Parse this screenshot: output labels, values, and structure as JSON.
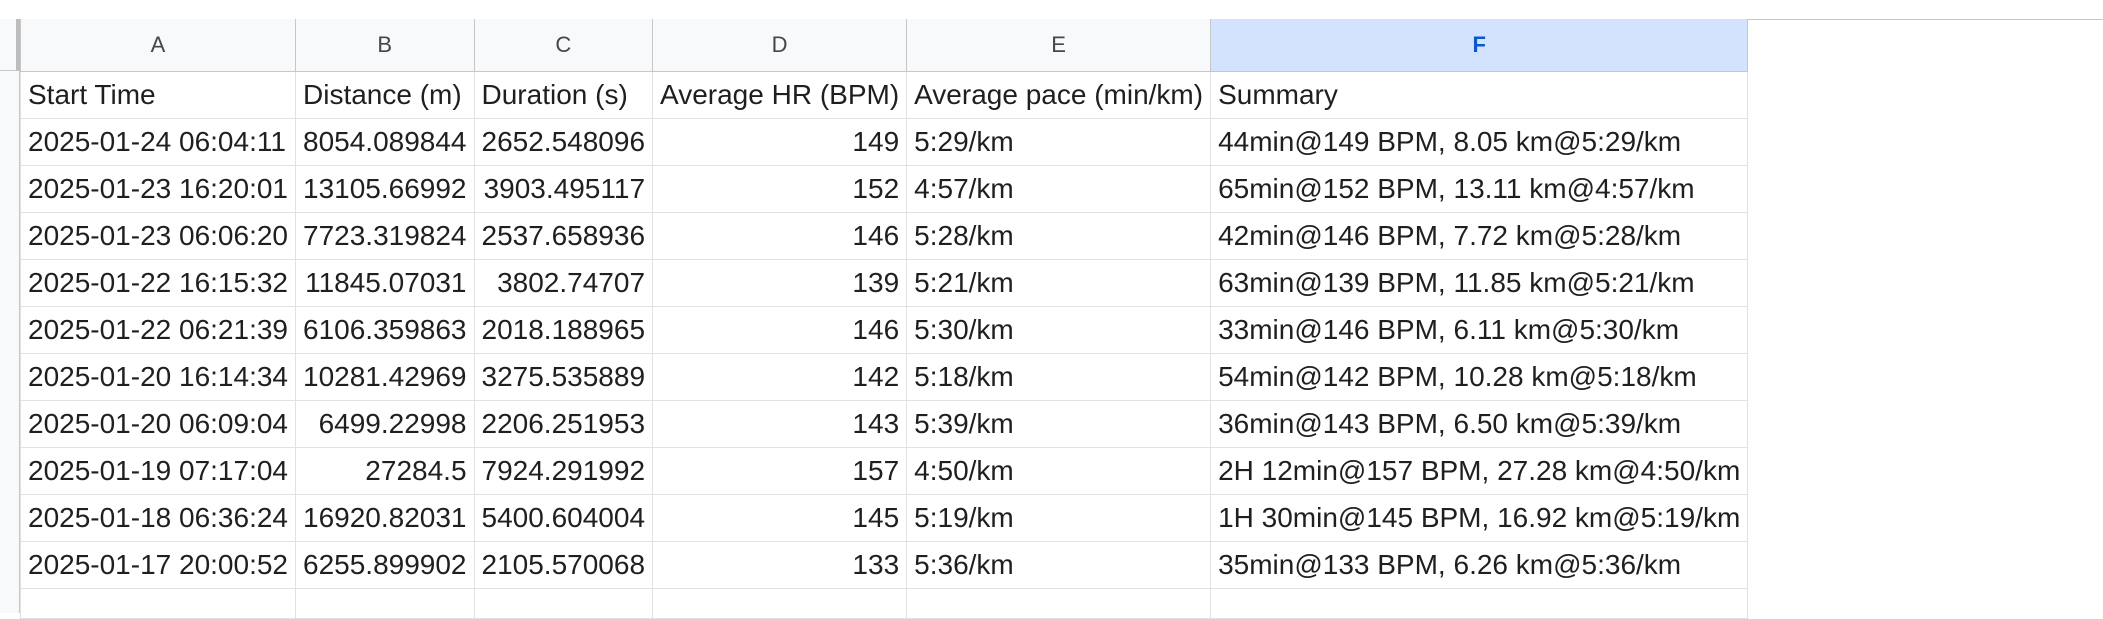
{
  "columns": [
    "A",
    "B",
    "C",
    "D",
    "E",
    "F"
  ],
  "header_row": [
    "Start Time",
    "Distance (m)",
    "Duration (s)",
    "Average HR (BPM)",
    "Average pace (min/km)",
    "Summary"
  ],
  "rows": [
    [
      "2025-01-24 06:04:11",
      "8054.089844",
      "2652.548096",
      "149",
      "5:29/km",
      "44min@149 BPM, 8.05 km@5:29/km"
    ],
    [
      "2025-01-23 16:20:01",
      "13105.66992",
      "3903.495117",
      "152",
      "4:57/km",
      "65min@152 BPM, 13.11 km@4:57/km"
    ],
    [
      "2025-01-23 06:06:20",
      "7723.319824",
      "2537.658936",
      "146",
      "5:28/km",
      "42min@146 BPM, 7.72 km@5:28/km"
    ],
    [
      "2025-01-22 16:15:32",
      "11845.07031",
      "3802.74707",
      "139",
      "5:21/km",
      "63min@139 BPM, 11.85 km@5:21/km"
    ],
    [
      "2025-01-22 06:21:39",
      "6106.359863",
      "2018.188965",
      "146",
      "5:30/km",
      "33min@146 BPM, 6.11 km@5:30/km"
    ],
    [
      "2025-01-20 16:14:34",
      "10281.42969",
      "3275.535889",
      "142",
      "5:18/km",
      "54min@142 BPM, 10.28 km@5:18/km"
    ],
    [
      "2025-01-20 06:09:04",
      "6499.22998",
      "2206.251953",
      "143",
      "5:39/km",
      "36min@143 BPM, 6.50 km@5:39/km"
    ],
    [
      "2025-01-19 07:17:04",
      "27284.5",
      "7924.291992",
      "157",
      "4:50/km",
      "2H 12min@157 BPM, 27.28 km@4:50/km"
    ],
    [
      "2025-01-18 06:36:24",
      "16920.82031",
      "5400.604004",
      "145",
      "5:19/km",
      "1H 30min@145 BPM, 16.92 km@5:19/km"
    ],
    [
      "2025-01-17 20:00:52",
      "6255.899902",
      "2105.570068",
      "133",
      "5:36/km",
      "35min@133 BPM, 6.26 km@5:36/km"
    ]
  ]
}
